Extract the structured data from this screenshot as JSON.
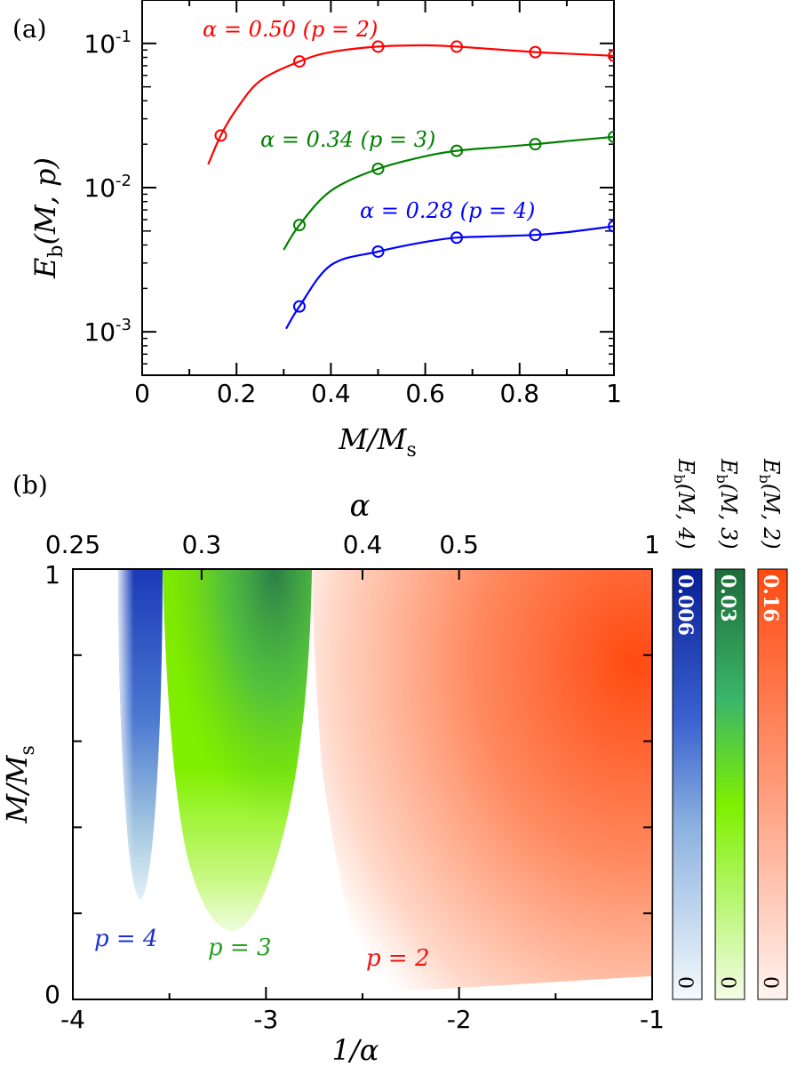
{
  "panel_a": {
    "label": "(a)",
    "ylabel": "E_b(M, p)",
    "ylabel_main": "E",
    "ylabel_sub": "b",
    "ylabel_args": "(M, p)",
    "xlabel": "M/M_s",
    "xlabel_main": "M/M",
    "xlabel_sub": "s",
    "x_ticks": [
      "0",
      "0.2",
      "0.4",
      "0.6",
      "0.8",
      "1"
    ],
    "y_ticks": [
      {
        "base": "10",
        "exp": "-1"
      },
      {
        "base": "10",
        "exp": "-2"
      },
      {
        "base": "10",
        "exp": "-3"
      }
    ],
    "annotations": [
      {
        "text": "α = 0.50 (p = 2)",
        "color": "#ff0000"
      },
      {
        "text": "α = 0.34 (p = 3)",
        "color": "#008000"
      },
      {
        "text": "α = 0.28 (p = 4)",
        "color": "#0000ff"
      }
    ]
  },
  "panel_b": {
    "label": "(b)",
    "top_axis_label": "α",
    "top_ticks": [
      "0.25",
      "0.3",
      "0.4",
      "0.5",
      "1"
    ],
    "bottom_ticks": [
      "-4",
      "-3",
      "-2",
      "-1"
    ],
    "bottom_label": "1/α",
    "y_ticks": [
      "1",
      "0"
    ],
    "ylabel_main": "M/M",
    "ylabel_sub": "s",
    "region_labels": [
      {
        "text": "p = 4",
        "color": "#1a33cc"
      },
      {
        "text": "p = 3",
        "color": "#22a022"
      },
      {
        "text": "p = 2",
        "color": "#ee1111"
      }
    ],
    "colorbars": [
      {
        "title": "E_b(M, 4)",
        "max": "0.006",
        "min": "0",
        "color_top": "#0a1e96",
        "color_mid": "#6f90d8",
        "color_bottom": "#f4fafc"
      },
      {
        "title": "E_b(M, 3)",
        "max": "0.03",
        "min": "0",
        "color_top": "#1e6b3a",
        "color_mid": "#7ef000",
        "color_bottom": "#f4fce8"
      },
      {
        "title": "E_b(M, 2)",
        "max": "0.16",
        "min": "0",
        "color_top": "#ff4a10",
        "color_mid": "#ff9a78",
        "color_bottom": "#fff2ee"
      }
    ]
  },
  "chart_data": [
    {
      "type": "line",
      "xlabel": "M/M_s",
      "ylabel": "E_b(M, p)",
      "xlim": [
        0,
        1
      ],
      "ylim": [
        0.0005,
        0.2
      ],
      "yscale": "log",
      "grid": false,
      "series": [
        {
          "name": "α = 0.50 (p = 2)",
          "color": "#ff0000",
          "points": [
            [
              0.1667,
              0.023
            ],
            [
              0.3333,
              0.075
            ],
            [
              0.5,
              0.095
            ],
            [
              0.6667,
              0.095
            ],
            [
              0.8333,
              0.087
            ],
            [
              1.0,
              0.082
            ]
          ],
          "curve": [
            [
              0.14,
              0.0145
            ],
            [
              0.1667,
              0.023
            ],
            [
              0.2,
              0.035
            ],
            [
              0.25,
              0.055
            ],
            [
              0.3333,
              0.075
            ],
            [
              0.4,
              0.087
            ],
            [
              0.5,
              0.095
            ],
            [
              0.6,
              0.097
            ],
            [
              0.6667,
              0.095
            ],
            [
              0.75,
              0.091
            ],
            [
              0.8333,
              0.087
            ],
            [
              0.9,
              0.085
            ],
            [
              1.0,
              0.082
            ]
          ]
        },
        {
          "name": "α = 0.34 (p = 3)",
          "color": "#008000",
          "points": [
            [
              0.3333,
              0.0055
            ],
            [
              0.5,
              0.0135
            ],
            [
              0.6667,
              0.018
            ],
            [
              0.8333,
              0.02
            ],
            [
              1.0,
              0.0225
            ]
          ],
          "curve": [
            [
              0.3,
              0.0037
            ],
            [
              0.3333,
              0.0055
            ],
            [
              0.4,
              0.0095
            ],
            [
              0.5,
              0.0135
            ],
            [
              0.6,
              0.0165
            ],
            [
              0.6667,
              0.018
            ],
            [
              0.75,
              0.019
            ],
            [
              0.8333,
              0.02
            ],
            [
              0.9,
              0.021
            ],
            [
              1.0,
              0.0225
            ]
          ]
        },
        {
          "name": "α = 0.28 (p = 4)",
          "color": "#0000ff",
          "points": [
            [
              0.3333,
              0.0015
            ],
            [
              0.5,
              0.0036
            ],
            [
              0.6667,
              0.0045
            ],
            [
              0.8333,
              0.0047
            ],
            [
              1.0,
              0.0054
            ]
          ],
          "curve": [
            [
              0.305,
              0.00105
            ],
            [
              0.3333,
              0.0015
            ],
            [
              0.4,
              0.0029
            ],
            [
              0.5,
              0.0036
            ],
            [
              0.6,
              0.0042
            ],
            [
              0.6667,
              0.0045
            ],
            [
              0.75,
              0.0046
            ],
            [
              0.8333,
              0.0047
            ],
            [
              0.9,
              0.0049
            ],
            [
              1.0,
              0.0054
            ]
          ]
        }
      ]
    },
    {
      "type": "heatmap",
      "xlabel": "1/α",
      "ylabel": "M/M_s",
      "top_xlabel": "α",
      "xlim": [
        -4,
        -1
      ],
      "ylim": [
        0,
        1
      ],
      "top_ticks_alpha": [
        0.25,
        0.3,
        0.4,
        0.5,
        1
      ],
      "regions": [
        {
          "name": "p = 4",
          "x_range": [
            -3.78,
            -3.52
          ],
          "color_max": "#0a1e96",
          "max_value": 0.006
        },
        {
          "name": "p = 3",
          "x_range": [
            -3.52,
            -2.73
          ],
          "color_max": "#1e6b3a",
          "max_value": 0.03
        },
        {
          "name": "p = 2",
          "x_range": [
            -2.73,
            -1.0
          ],
          "color_max": "#ff4a10",
          "max_value": 0.16
        }
      ]
    }
  ]
}
